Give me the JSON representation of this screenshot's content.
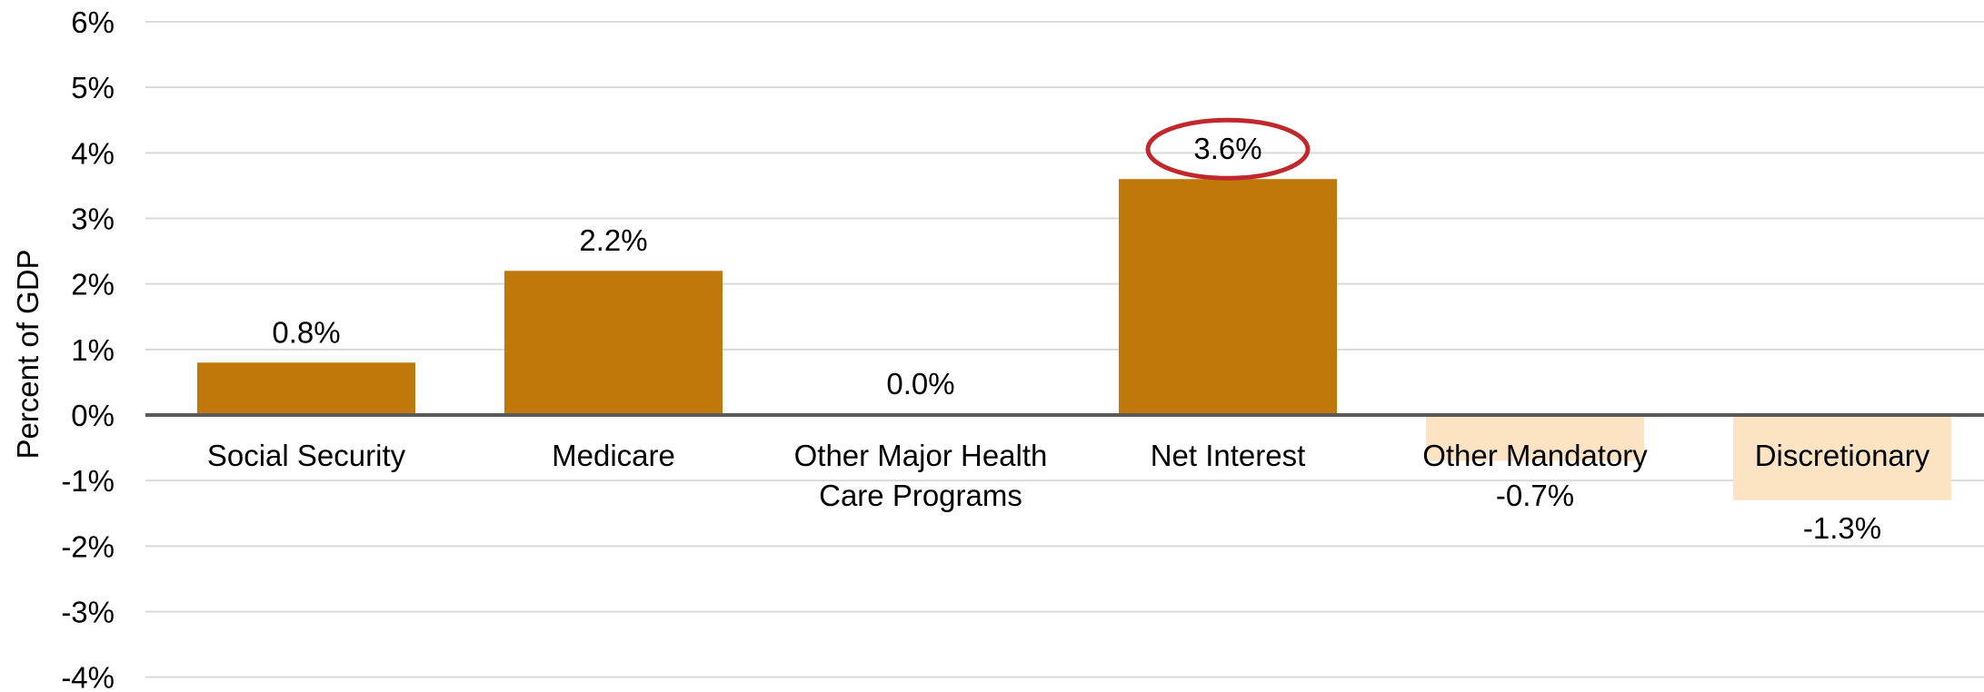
{
  "chart_data": {
    "type": "bar",
    "ylabel": "Percent of GDP",
    "xlabel": "",
    "ylim": [
      -4,
      6
    ],
    "yticks": [
      6,
      5,
      4,
      3,
      2,
      1,
      0,
      -1,
      -2,
      -3,
      -4
    ],
    "ytick_labels": [
      "6%",
      "5%",
      "4%",
      "3%",
      "2%",
      "1%",
      "0%",
      "-1%",
      "-2%",
      "-3%",
      "-4%"
    ],
    "grid": true,
    "categories": [
      [
        "Social Security"
      ],
      [
        "Medicare"
      ],
      [
        "Other Major Health",
        "Care Programs"
      ],
      [
        "Net Interest"
      ],
      [
        "Other Mandatory"
      ],
      [
        "Discretionary"
      ]
    ],
    "values": [
      0.8,
      2.2,
      0.0,
      3.6,
      -0.7,
      -1.3
    ],
    "data_labels": [
      "0.8%",
      "2.2%",
      "0.0%",
      "3.6%",
      "-0.7%",
      "-1.3%"
    ],
    "highlighted_category": "Net Interest",
    "colors": {
      "positive_bar": "#c0780b",
      "negative_bar": "#fbe3c4",
      "gridline": "#d9d9d9",
      "axis": "#595959",
      "highlight_ellipse": "#c0282d"
    }
  }
}
